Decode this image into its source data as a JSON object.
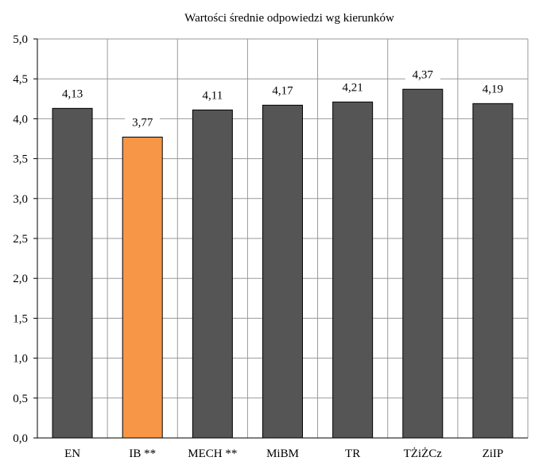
{
  "chart_data": {
    "type": "bar",
    "title": "Wartości średnie odpowiedzi wg kierunków",
    "categories": [
      "EN",
      "IB **",
      "MECH **",
      "MiBM",
      "TR",
      "TŻiŻCz",
      "ZiIP"
    ],
    "values": [
      4.13,
      3.77,
      4.11,
      4.17,
      4.21,
      4.37,
      4.19
    ],
    "data_labels": [
      "4,13",
      "3,77",
      "4,11",
      "4,17",
      "4,21",
      "4,37",
      "4,19"
    ],
    "y_ticks": [
      "0,0",
      "0,5",
      "1,0",
      "1,5",
      "2,0",
      "2,5",
      "3,0",
      "3,5",
      "4,0",
      "4,5",
      "5,0"
    ],
    "ylim": [
      0,
      5
    ],
    "grid": true,
    "colors": {
      "default_bar": "#555555",
      "highlight_bar": "#f79646"
    },
    "highlight_index": 1,
    "xlabel": "",
    "ylabel": ""
  }
}
